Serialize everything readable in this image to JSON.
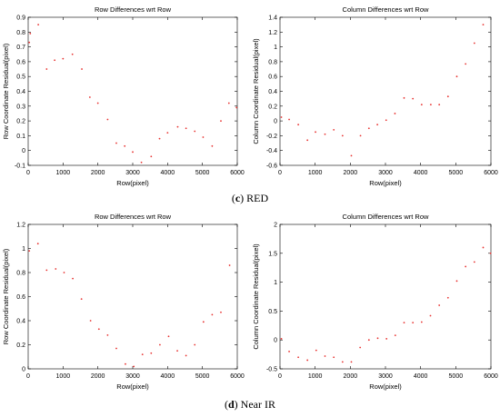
{
  "captions": [
    {
      "letter": "c",
      "text": "RED"
    },
    {
      "letter": "d",
      "text": "Near IR"
    }
  ],
  "colors": {
    "marker": "#e8312f",
    "axis": "#000000",
    "background": "#ffffff"
  },
  "chart_data": [
    {
      "type": "scatter",
      "title": "Row Differences wrt Row",
      "xlabel": "Row(pixel)",
      "ylabel": "Row Coordinate Residual(pixel)",
      "xlim": [
        0,
        6000
      ],
      "ylim": [
        -0.1,
        0.9
      ],
      "xticks": [
        0,
        1000,
        2000,
        3000,
        4000,
        5000,
        6000
      ],
      "yticks": [
        -0.1,
        0,
        0.1,
        0.2,
        0.3,
        0.4,
        0.5,
        0.6,
        0.7,
        0.8,
        0.9
      ],
      "grid": false,
      "x": [
        30,
        60,
        290,
        530,
        760,
        1000,
        1270,
        1540,
        1770,
        2000,
        2280,
        2530,
        2770,
        3000,
        3250,
        3530,
        3770,
        4000,
        4290,
        4530,
        4780,
        5020,
        5280,
        5530,
        5760,
        5980
      ],
      "y": [
        0.73,
        0.79,
        0.85,
        0.55,
        0.61,
        0.62,
        0.65,
        0.55,
        0.36,
        0.32,
        0.21,
        0.05,
        0.03,
        -0.01,
        -0.08,
        -0.04,
        0.08,
        0.12,
        0.16,
        0.15,
        0.13,
        0.09,
        0.03,
        0.2,
        0.32,
        0.29
      ]
    },
    {
      "type": "scatter",
      "title": "Column Differences wrt Row",
      "xlabel": "Row(pixel)",
      "ylabel": "Column Coordinate Residual(pixel)",
      "xlim": [
        0,
        6000
      ],
      "ylim": [
        -0.6,
        1.4
      ],
      "xticks": [
        0,
        1000,
        2000,
        3000,
        4000,
        5000,
        6000
      ],
      "yticks": [
        -0.6,
        -0.4,
        -0.2,
        0,
        0.2,
        0.4,
        0.6,
        0.8,
        1,
        1.2,
        1.4
      ],
      "grid": false,
      "x": [
        40,
        260,
        520,
        780,
        1010,
        1280,
        1530,
        1780,
        2030,
        2290,
        2530,
        2770,
        3020,
        3270,
        3530,
        3780,
        4030,
        4290,
        4530,
        4780,
        5030,
        5280,
        5530,
        5780
      ],
      "y": [
        0.05,
        0.02,
        -0.05,
        -0.26,
        -0.15,
        -0.18,
        -0.12,
        -0.2,
        -0.47,
        -0.2,
        -0.1,
        -0.05,
        0.01,
        0.1,
        0.31,
        0.3,
        0.22,
        0.22,
        0.22,
        0.33,
        0.6,
        0.77,
        1.05,
        1.3
      ]
    },
    {
      "type": "scatter",
      "title": "Row Differences wrt Row",
      "xlabel": "Row(pixel)",
      "ylabel": "Row Coordinate Residual(pixel)",
      "xlim": [
        0,
        6000
      ],
      "ylim": [
        0,
        1.2
      ],
      "xticks": [
        0,
        1000,
        2000,
        3000,
        4000,
        5000,
        6000
      ],
      "yticks": [
        0,
        0.2,
        0.4,
        0.6,
        0.8,
        1,
        1.2
      ],
      "grid": false,
      "x": [
        30,
        280,
        530,
        790,
        1030,
        1280,
        1530,
        1790,
        2030,
        2280,
        2530,
        2790,
        3030,
        3280,
        3530,
        3780,
        4030,
        4280,
        4530,
        4780,
        5030,
        5280,
        5530,
        5780
      ],
      "y": [
        0.98,
        1.04,
        0.82,
        0.83,
        0.8,
        0.75,
        0.58,
        0.4,
        0.33,
        0.28,
        0.17,
        0.04,
        0.02,
        0.12,
        0.13,
        0.2,
        0.27,
        0.15,
        0.11,
        0.2,
        0.39,
        0.45,
        0.47,
        0.86
      ]
    },
    {
      "type": "scatter",
      "title": "Column Differences wrt Row",
      "xlabel": "Row(pixel)",
      "ylabel": "Column Coordinate Residual(pixel)",
      "xlim": [
        0,
        6000
      ],
      "ylim": [
        -0.5,
        2
      ],
      "xticks": [
        0,
        1000,
        2000,
        3000,
        4000,
        5000,
        6000
      ],
      "yticks": [
        -0.5,
        0,
        0.5,
        1,
        1.5,
        2
      ],
      "grid": false,
      "x": [
        40,
        260,
        520,
        780,
        1030,
        1280,
        1530,
        1780,
        2030,
        2280,
        2530,
        2780,
        3030,
        3280,
        3530,
        3780,
        4030,
        4280,
        4530,
        4780,
        5030,
        5280,
        5530,
        5780,
        5990
      ],
      "y": [
        0.02,
        -0.2,
        -0.3,
        -0.35,
        -0.18,
        -0.28,
        -0.3,
        -0.38,
        -0.38,
        -0.13,
        0.0,
        0.03,
        0.02,
        0.08,
        0.3,
        0.3,
        0.31,
        0.42,
        0.6,
        0.73,
        1.02,
        1.27,
        1.35,
        1.6,
        1.5
      ]
    }
  ]
}
